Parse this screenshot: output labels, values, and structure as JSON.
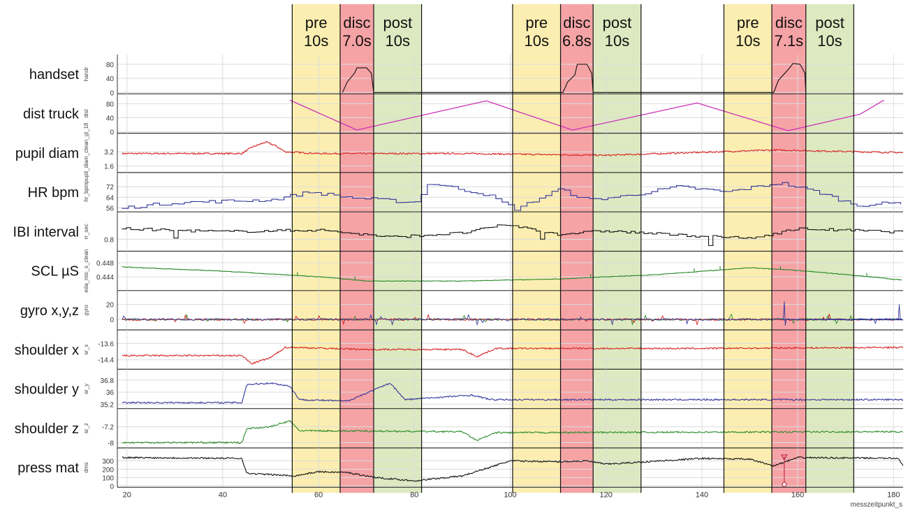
{
  "colors": {
    "pre": "#fbeeb0",
    "disc": "#f6a3a6",
    "post": "#dde9c0",
    "red": "#d62020",
    "blue": "#33359a",
    "black": "#111111",
    "green": "#2a8a2a",
    "magenta": "#cc33bb",
    "grid": "#dcdcdc",
    "axis": "#333333"
  },
  "chart_data": {
    "type": "line",
    "x": {
      "label": "messzeitpunkt_s",
      "range": [
        18,
        182
      ],
      "ticks": [
        20,
        40,
        60,
        80,
        100,
        120,
        140,
        160,
        180
      ]
    },
    "events": [
      {
        "id": "e1",
        "segments": [
          {
            "kind": "pre",
            "line1": "pre",
            "line2": "10s",
            "start": 54.5,
            "end": 64.5
          },
          {
            "kind": "disc",
            "line1": "disc",
            "line2": "7.0s",
            "start": 64.5,
            "end": 71.5
          },
          {
            "kind": "post",
            "line1": "post",
            "line2": "10s",
            "start": 71.5,
            "end": 81.5
          }
        ]
      },
      {
        "id": "e2",
        "segments": [
          {
            "kind": "pre",
            "line1": "pre",
            "line2": "10s",
            "start": 100.5,
            "end": 110.5
          },
          {
            "kind": "disc",
            "line1": "disc",
            "line2": "6.8s",
            "start": 110.5,
            "end": 117.3
          },
          {
            "kind": "post",
            "line1": "post",
            "line2": "10s",
            "start": 117.3,
            "end": 127.3
          }
        ]
      },
      {
        "id": "e3",
        "segments": [
          {
            "kind": "pre",
            "line1": "pre",
            "line2": "10s",
            "start": 144.6,
            "end": 154.6
          },
          {
            "kind": "disc",
            "line1": "disc",
            "line2": "7.1s",
            "start": 154.6,
            "end": 161.7
          },
          {
            "kind": "post",
            "line1": "post",
            "line2": "10s",
            "start": 161.7,
            "end": 171.7
          }
        ]
      }
    ],
    "panels": [
      {
        "name": "handset",
        "ylabel": "handr",
        "color": "black",
        "yticks": [
          0,
          40,
          80
        ],
        "ylim": [
          0,
          90
        ],
        "gen": "handset",
        "values": [
          [
            65,
            0
          ],
          [
            66,
            30
          ],
          [
            67.5,
            55
          ],
          [
            68,
            70
          ],
          [
            70,
            70
          ],
          [
            71,
            55
          ],
          [
            71.5,
            0
          ],
          [
            111,
            0
          ],
          [
            112,
            30
          ],
          [
            113.5,
            50
          ],
          [
            114,
            80
          ],
          [
            116,
            80
          ],
          [
            117,
            55
          ],
          [
            117.3,
            0
          ],
          [
            155,
            0
          ],
          [
            156,
            35
          ],
          [
            158,
            65
          ],
          [
            159,
            82
          ],
          [
            160.5,
            80
          ],
          [
            161.5,
            55
          ],
          [
            161.7,
            0
          ]
        ]
      },
      {
        "name": "dist truck",
        "ylabel": "dist",
        "color": "magenta",
        "yticks": [
          0,
          40,
          80
        ],
        "ylim": [
          0,
          90
        ],
        "gen": "truck",
        "values": [
          [
            54,
            90
          ],
          [
            68,
            5
          ],
          [
            95,
            88
          ],
          [
            113,
            5
          ],
          [
            139,
            82
          ],
          [
            158,
            3
          ],
          [
            173,
            50
          ],
          [
            178,
            90
          ]
        ]
      },
      {
        "name": "pupil diam",
        "ylabel": "pupil_diam_clean_gl_18",
        "color": "red",
        "yticks": [
          1.6,
          3.2
        ],
        "ylim": [
          1.0,
          4.6
        ],
        "gen": "pupil",
        "baseline": [
          [
            19,
            3.0
          ],
          [
            44,
            3.0
          ],
          [
            46,
            3.7
          ],
          [
            49,
            4.3
          ],
          [
            51,
            3.9
          ],
          [
            53,
            3.2
          ],
          [
            60,
            3.0
          ],
          [
            90,
            3.0
          ],
          [
            120,
            2.8
          ],
          [
            155,
            3.4
          ],
          [
            182,
            3.1
          ]
        ]
      },
      {
        "name": "HR bpm",
        "ylabel": "hr_bpm",
        "color": "blue",
        "yticks": [
          56,
          64,
          72
        ],
        "ylim": [
          54,
          78
        ],
        "gen": "hr",
        "baseline": [
          [
            19,
            56
          ],
          [
            30,
            60
          ],
          [
            50,
            62
          ],
          [
            58,
            68
          ],
          [
            66,
            64
          ],
          [
            80,
            60
          ],
          [
            83,
            75
          ],
          [
            95,
            66
          ],
          [
            101,
            55
          ],
          [
            110,
            70
          ],
          [
            116,
            62
          ],
          [
            124,
            65
          ],
          [
            135,
            72
          ],
          [
            145,
            68
          ],
          [
            156,
            75
          ],
          [
            164,
            68
          ],
          [
            172,
            58
          ],
          [
            182,
            60
          ]
        ]
      },
      {
        "name": "IBI interval",
        "ylabel": "rr_sec",
        "color": "black",
        "yticks": [
          0.8
        ],
        "ylim": [
          0.55,
          1.3
        ],
        "gen": "ibi",
        "baseline": [
          [
            19,
            1.05
          ],
          [
            40,
            0.98
          ],
          [
            60,
            1.02
          ],
          [
            75,
            0.85
          ],
          [
            90,
            0.95
          ],
          [
            99,
            1.15
          ],
          [
            110,
            0.92
          ],
          [
            120,
            1.0
          ],
          [
            135,
            0.9
          ],
          [
            150,
            0.82
          ],
          [
            160,
            1.05
          ],
          [
            182,
            0.97
          ]
        ]
      },
      {
        "name": "SCL µS",
        "ylabel": "eda_mic_s_clean",
        "color": "green",
        "yticks": [
          0.444,
          0.448
        ],
        "ylim": [
          0.4405,
          0.4495
        ],
        "gen": "scl",
        "baseline": [
          [
            19,
            0.4468
          ],
          [
            40,
            0.4456
          ],
          [
            60,
            0.444
          ],
          [
            70,
            0.4428
          ],
          [
            90,
            0.4428
          ],
          [
            110,
            0.4434
          ],
          [
            130,
            0.4446
          ],
          [
            150,
            0.4466
          ],
          [
            160,
            0.4458
          ],
          [
            175,
            0.444
          ],
          [
            182,
            0.443
          ]
        ]
      },
      {
        "name": "gyro x,y,z",
        "ylabel": "gyro",
        "color": "multi",
        "yticks": [
          0,
          20
        ],
        "ylim": [
          -12,
          30
        ],
        "gen": "gyro"
      },
      {
        "name": "shoulder x",
        "ylabel": "sr_x",
        "color": "red",
        "yticks": [
          -14.4,
          -13.6
        ],
        "ylim": [
          -14.8,
          -13.25
        ],
        "gen": "shx",
        "baseline": [
          [
            19,
            -14.2
          ],
          [
            44,
            -14.2
          ],
          [
            46,
            -14.6
          ],
          [
            50,
            -14.3
          ],
          [
            53,
            -13.8
          ],
          [
            55,
            -13.8
          ],
          [
            70,
            -13.9
          ],
          [
            90,
            -13.9
          ],
          [
            93,
            -14.25
          ],
          [
            97,
            -13.85
          ],
          [
            140,
            -13.85
          ],
          [
            182,
            -13.8
          ]
        ]
      },
      {
        "name": "shoulder y",
        "ylabel": "sr_y",
        "color": "blue",
        "yticks": [
          35.2,
          36,
          36.8
        ],
        "ylim": [
          35.0,
          37.1
        ],
        "gen": "shy",
        "baseline": [
          [
            19,
            35.3
          ],
          [
            44,
            35.3
          ],
          [
            45,
            36.5
          ],
          [
            50,
            36.6
          ],
          [
            54,
            36.4
          ],
          [
            56,
            35.5
          ],
          [
            66,
            35.4
          ],
          [
            75,
            36.6
          ],
          [
            78,
            35.5
          ],
          [
            92,
            35.8
          ],
          [
            96,
            35.5
          ],
          [
            182,
            35.5
          ]
        ]
      },
      {
        "name": "shoulder z",
        "ylabel": "sr_z",
        "color": "green",
        "yticks": [
          -8,
          -7.2
        ],
        "ylim": [
          -8.2,
          -6.6
        ],
        "gen": "shz",
        "baseline": [
          [
            19,
            -8.0
          ],
          [
            44,
            -8.0
          ],
          [
            45,
            -7.3
          ],
          [
            50,
            -7.2
          ],
          [
            54,
            -6.9
          ],
          [
            56,
            -7.4
          ],
          [
            90,
            -7.45
          ],
          [
            93,
            -7.9
          ],
          [
            97,
            -7.5
          ],
          [
            182,
            -7.45
          ]
        ]
      },
      {
        "name": "press mat",
        "ylabel": "dms",
        "color": "black",
        "yticks": [
          0,
          100,
          200,
          300
        ],
        "ylim": [
          0,
          380
        ],
        "gen": "press",
        "baseline": [
          [
            19,
            340
          ],
          [
            44,
            330
          ],
          [
            45,
            150
          ],
          [
            55,
            120
          ],
          [
            60,
            170
          ],
          [
            66,
            160
          ],
          [
            72,
            100
          ],
          [
            80,
            60
          ],
          [
            90,
            120
          ],
          [
            100,
            300
          ],
          [
            110,
            290
          ],
          [
            116,
            300
          ],
          [
            120,
            260
          ],
          [
            140,
            330
          ],
          [
            150,
            320
          ],
          [
            155,
            240
          ],
          [
            160,
            340
          ],
          [
            181,
            330
          ],
          [
            182,
            250
          ]
        ]
      }
    ]
  }
}
